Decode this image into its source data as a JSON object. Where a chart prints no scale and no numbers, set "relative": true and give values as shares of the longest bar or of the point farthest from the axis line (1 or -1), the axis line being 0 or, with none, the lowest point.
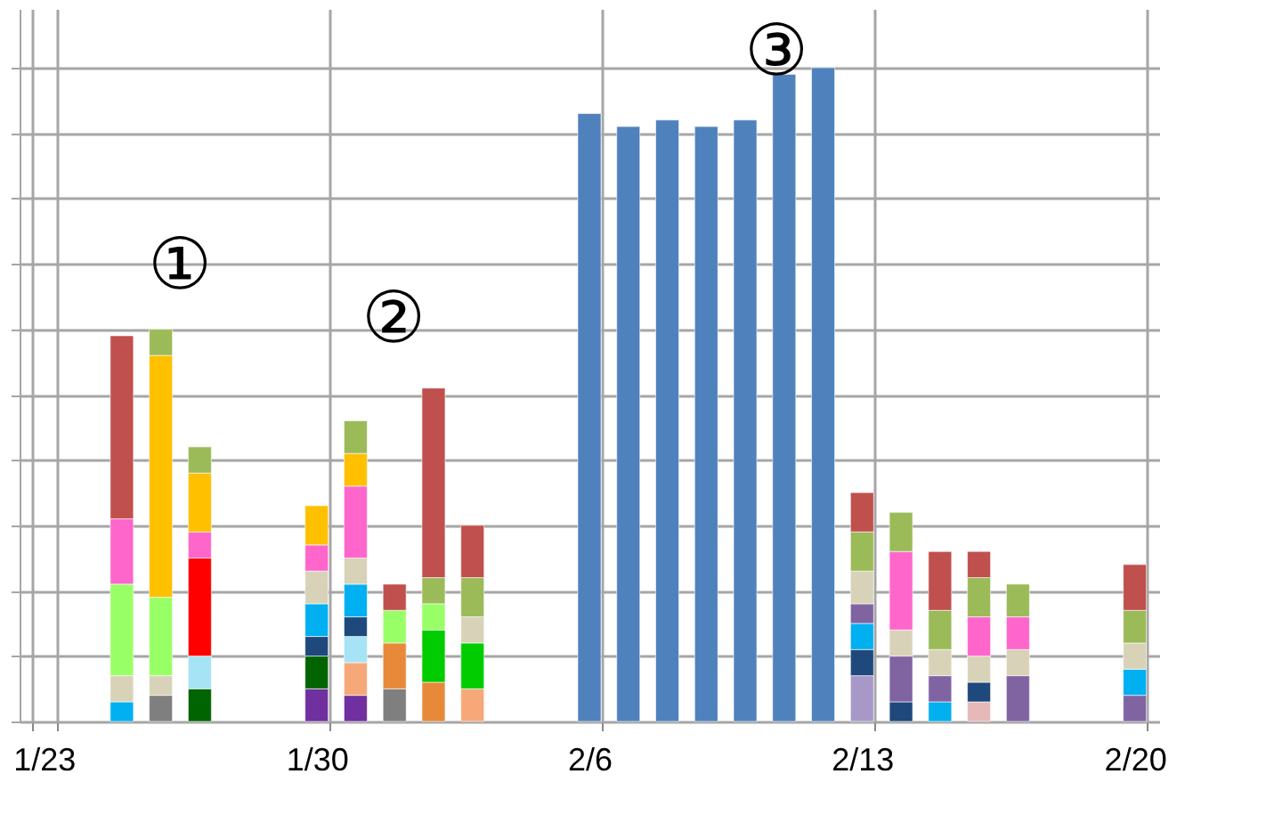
{
  "chart_data": {
    "type": "bar",
    "stacked": true,
    "relative": true,
    "grid": true,
    "categories": [
      "1/23",
      null,
      null,
      null,
      null,
      null,
      null,
      "1/30",
      null,
      null,
      null,
      null,
      null,
      null,
      "2/6",
      null,
      null,
      null,
      null,
      null,
      null,
      "2/13",
      null,
      null,
      null,
      null,
      null,
      null,
      "2/20"
    ],
    "annotations": [
      "①",
      "②",
      "③"
    ],
    "series": [
      {
        "color": "#8064a2",
        "values": [
          null,
          null,
          null,
          null,
          null,
          null,
          null,
          null,
          null,
          null,
          null,
          null,
          null,
          null,
          null,
          null,
          null,
          null,
          null,
          null,
          null,
          null,
          null,
          null,
          null,
          null,
          null,
          null,
          0.04
        ]
      },
      {
        "color": "#7030a0",
        "values": [
          null,
          null,
          null,
          null,
          null,
          null,
          null,
          0.05,
          0.04,
          null,
          null,
          null,
          null,
          null,
          null,
          null,
          null,
          null,
          null,
          null,
          null,
          null,
          null,
          null,
          null,
          null,
          null,
          null,
          null
        ]
      },
      {
        "color": "#a898c8",
        "values": [
          null,
          null,
          null,
          null,
          null,
          null,
          null,
          null,
          null,
          null,
          null,
          null,
          null,
          null,
          null,
          null,
          null,
          null,
          null,
          null,
          null,
          0.07,
          null,
          null,
          null,
          null,
          null,
          null,
          null
        ]
      },
      {
        "color": "#e6b9b8",
        "values": [
          null,
          null,
          null,
          null,
          null,
          null,
          null,
          null,
          null,
          null,
          null,
          null,
          null,
          null,
          null,
          null,
          null,
          null,
          null,
          null,
          null,
          null,
          null,
          null,
          0.03,
          null,
          null,
          null,
          null
        ]
      },
      {
        "color": "#f7a878",
        "values": [
          null,
          null,
          null,
          null,
          null,
          null,
          null,
          null,
          0.05,
          null,
          null,
          0.05,
          null,
          null,
          null,
          null,
          null,
          null,
          null,
          null,
          null,
          null,
          null,
          null,
          null,
          null,
          null,
          null,
          null
        ]
      },
      {
        "color": "#7f7f7f",
        "values": [
          null,
          null,
          null,
          0.04,
          null,
          null,
          null,
          null,
          null,
          0.05,
          null,
          null,
          null,
          null,
          null,
          null,
          null,
          null,
          null,
          null,
          null,
          null,
          null,
          null,
          null,
          null,
          null,
          null,
          null
        ]
      },
      {
        "color": "#e8893a",
        "values": [
          null,
          null,
          null,
          null,
          null,
          null,
          null,
          null,
          null,
          0.07,
          0.06,
          null,
          null,
          null,
          null,
          null,
          null,
          null,
          null,
          null,
          null,
          null,
          null,
          null,
          null,
          null,
          null,
          null,
          null
        ]
      },
      {
        "color": "#006400",
        "values": [
          null,
          null,
          null,
          null,
          0.05,
          null,
          null,
          0.05,
          null,
          null,
          null,
          null,
          null,
          null,
          null,
          null,
          null,
          null,
          null,
          null,
          null,
          null,
          null,
          null,
          null,
          null,
          null,
          null,
          null
        ]
      },
      {
        "color": "#a6e3f5",
        "values": [
          null,
          null,
          null,
          null,
          0.05,
          null,
          null,
          null,
          0.04,
          null,
          null,
          null,
          null,
          null,
          null,
          null,
          null,
          null,
          null,
          null,
          null,
          null,
          null,
          null,
          null,
          null,
          null,
          null,
          null
        ]
      },
      {
        "color": "#1f497d",
        "values": [
          null,
          null,
          null,
          null,
          null,
          null,
          null,
          0.03,
          0.03,
          null,
          null,
          null,
          null,
          null,
          null,
          null,
          null,
          null,
          null,
          null,
          null,
          0.04,
          0.03,
          null,
          0.03,
          null,
          null,
          null,
          null
        ]
      },
      {
        "color": "#00b0f0",
        "values": [
          null,
          null,
          0.03,
          null,
          null,
          null,
          null,
          0.05,
          0.05,
          null,
          null,
          null,
          null,
          null,
          null,
          null,
          null,
          null,
          null,
          null,
          null,
          0.04,
          null,
          0.03,
          null,
          null,
          null,
          null,
          0.04
        ]
      },
      {
        "color": "#8064a2",
        "values": [
          null,
          null,
          null,
          null,
          null,
          null,
          null,
          null,
          null,
          null,
          null,
          null,
          null,
          null,
          null,
          null,
          null,
          null,
          null,
          null,
          null,
          0.03,
          0.07,
          0.04,
          null,
          0.07,
          null,
          null,
          null
        ]
      },
      {
        "color": "#00cc00",
        "values": [
          null,
          null,
          null,
          null,
          null,
          null,
          null,
          null,
          null,
          null,
          0.08,
          0.07,
          null,
          null,
          null,
          null,
          null,
          null,
          null,
          null,
          null,
          null,
          null,
          null,
          null,
          null,
          null,
          null,
          null
        ]
      },
      {
        "color": "#d8d3b8",
        "values": [
          null,
          null,
          0.04,
          0.03,
          null,
          null,
          null,
          0.05,
          0.04,
          null,
          null,
          0.04,
          null,
          null,
          null,
          null,
          null,
          null,
          null,
          null,
          null,
          0.05,
          0.04,
          0.04,
          0.04,
          0.04,
          null,
          null,
          0.04
        ]
      },
      {
        "color": "#99ff66",
        "values": [
          null,
          null,
          0.14,
          0.12,
          null,
          null,
          null,
          null,
          null,
          0.05,
          0.04,
          null,
          null,
          null,
          null,
          null,
          null,
          null,
          null,
          null,
          null,
          null,
          null,
          null,
          null,
          null,
          null,
          null,
          null
        ]
      },
      {
        "color": "#ff0000",
        "values": [
          null,
          null,
          null,
          null,
          0.15,
          null,
          null,
          null,
          null,
          null,
          null,
          null,
          null,
          null,
          null,
          null,
          null,
          null,
          null,
          null,
          null,
          null,
          null,
          null,
          null,
          null,
          null,
          null,
          null
        ]
      },
      {
        "color": "#ff66cc",
        "values": [
          null,
          null,
          0.1,
          null,
          0.04,
          null,
          null,
          0.04,
          0.11,
          null,
          null,
          null,
          null,
          null,
          null,
          null,
          null,
          null,
          null,
          null,
          null,
          null,
          0.12,
          null,
          0.06,
          0.05,
          null,
          null,
          null
        ]
      },
      {
        "color": "#ffc000",
        "values": [
          null,
          null,
          null,
          0.37,
          0.09,
          null,
          null,
          0.06,
          0.05,
          null,
          null,
          null,
          null,
          null,
          null,
          null,
          null,
          null,
          null,
          null,
          null,
          null,
          null,
          null,
          null,
          null,
          null,
          null,
          null
        ]
      },
      {
        "color": "#9bbb59",
        "values": [
          null,
          null,
          null,
          0.04,
          0.04,
          null,
          null,
          null,
          0.05,
          null,
          0.04,
          0.06,
          null,
          null,
          null,
          null,
          null,
          null,
          null,
          null,
          null,
          0.06,
          0.06,
          0.06,
          0.06,
          0.05,
          null,
          null,
          0.05
        ]
      },
      {
        "color": "#c0504d",
        "values": [
          null,
          null,
          0.28,
          null,
          null,
          null,
          null,
          null,
          null,
          0.04,
          0.29,
          0.08,
          null,
          null,
          null,
          null,
          null,
          null,
          null,
          null,
          null,
          0.06,
          null,
          0.09,
          0.04,
          null,
          null,
          null,
          0.07
        ]
      },
      {
        "color": "#4f81bd",
        "values": [
          null,
          null,
          null,
          null,
          null,
          null,
          null,
          null,
          null,
          null,
          null,
          null,
          null,
          null,
          0.93,
          0.91,
          0.92,
          0.91,
          0.92,
          0.99,
          1,
          null,
          null,
          null,
          null,
          null,
          null,
          null,
          null
        ]
      }
    ]
  }
}
